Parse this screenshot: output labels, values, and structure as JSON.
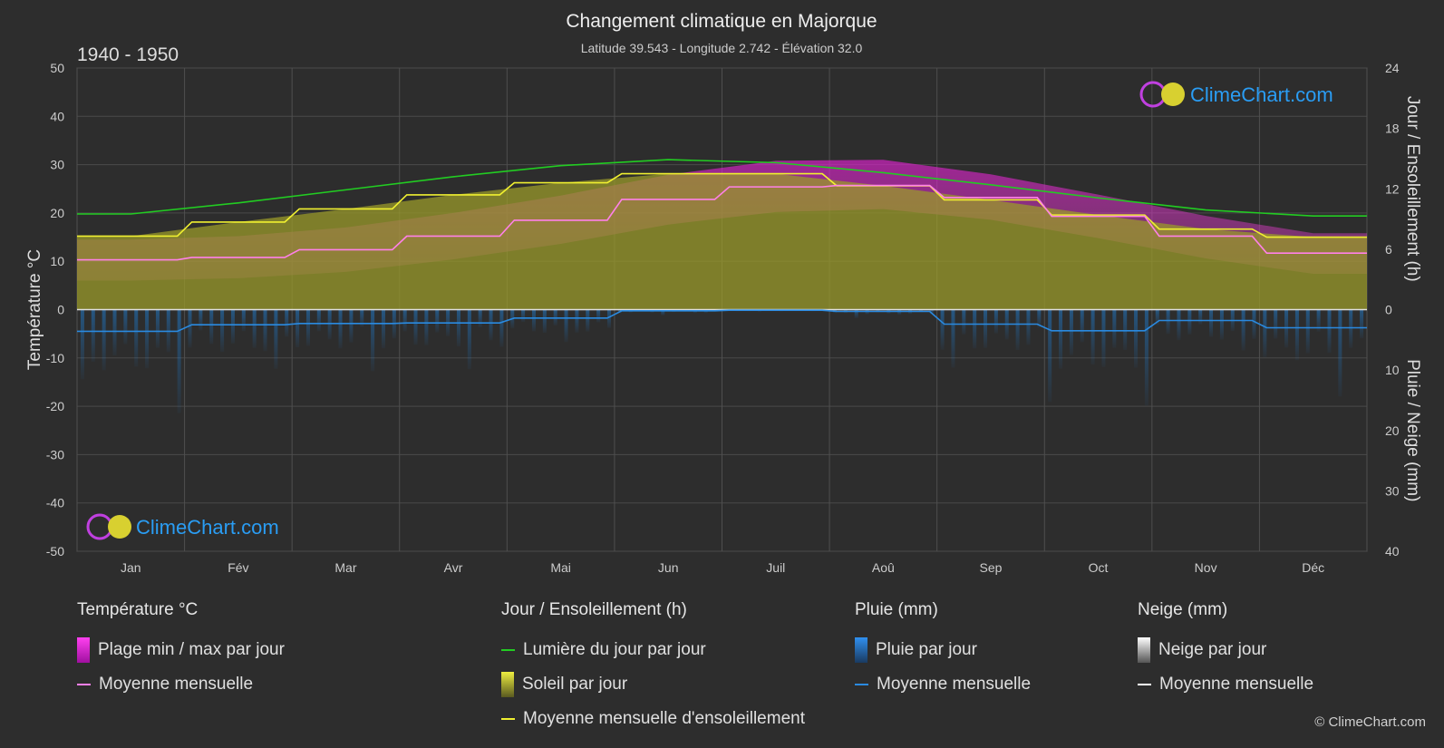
{
  "title": "Changement climatique en Majorque",
  "subtitle": "Latitude 39.543 - Longitude 2.742 - Élévation 32.0",
  "period": "1940 - 1950",
  "watermark": "ClimeChart.com",
  "copyright": "© ClimeChart.com",
  "colors": {
    "background": "#2d2d2d",
    "temp_range": "#e020d0",
    "temp_mean": "#ff80e8",
    "daylight": "#22cc22",
    "sunshine_fill": "#9a9a2a",
    "sunshine_mean": "#f0f030",
    "rain": "#1e78c8",
    "rain_mean": "#2a8ae0",
    "snow_mean": "#ffffff",
    "brand": "#2a9df4"
  },
  "legend": [
    {
      "title": "Température °C",
      "items": [
        {
          "label": "Plage min / max par jour",
          "swatch": "box",
          "color": "#e020d0"
        },
        {
          "label": "Moyenne mensuelle",
          "swatch": "line",
          "color": "#ff80e8"
        }
      ]
    },
    {
      "title": "Jour / Ensoleillement (h)",
      "items": [
        {
          "label": "Lumière du jour par jour",
          "swatch": "line",
          "color": "#22cc22"
        },
        {
          "label": "Soleil par jour",
          "swatch": "box",
          "color": "#c8c830"
        },
        {
          "label": "Moyenne mensuelle d'ensoleillement",
          "swatch": "line",
          "color": "#f0f030"
        }
      ]
    },
    {
      "title": "Pluie (mm)",
      "items": [
        {
          "label": "Pluie par jour",
          "swatch": "box",
          "color": "#1e78c8"
        },
        {
          "label": "Moyenne mensuelle",
          "swatch": "line",
          "color": "#2a8ae0"
        }
      ]
    },
    {
      "title": "Neige (mm)",
      "items": [
        {
          "label": "Neige par jour",
          "swatch": "box",
          "color": "#e0e0e0"
        },
        {
          "label": "Moyenne mensuelle",
          "swatch": "line",
          "color": "#ffffff"
        }
      ]
    }
  ],
  "chart_data": {
    "type": "line",
    "title": "Changement climatique en Majorque",
    "subtitle": "Latitude 39.543 - Longitude 2.742 - Élévation 32.0",
    "categories": [
      "Jan",
      "Fév",
      "Mar",
      "Avr",
      "Mai",
      "Jun",
      "Juil",
      "Aoû",
      "Sep",
      "Oct",
      "Nov",
      "Déc"
    ],
    "y_left": {
      "label": "Température °C",
      "min": -50,
      "max": 50,
      "ticks": [
        50,
        40,
        30,
        20,
        10,
        0,
        -10,
        -20,
        -30,
        -40,
        -50
      ]
    },
    "y_right_top": {
      "label": "Jour / Ensoleillement (h)",
      "min": 0,
      "max": 24,
      "ticks": [
        24,
        18,
        12,
        6,
        0
      ]
    },
    "y_right_bottom": {
      "label": "Pluie / Neige (mm)",
      "min": 0,
      "max": 40,
      "ticks": [
        10,
        20,
        30,
        40
      ]
    },
    "grid": true,
    "series": [
      {
        "name": "Lumière du jour par jour",
        "axis": "hours",
        "values": [
          9.5,
          10.6,
          11.9,
          13.2,
          14.3,
          14.9,
          14.6,
          13.6,
          12.4,
          11.1,
          9.9,
          9.3
        ]
      },
      {
        "name": "Moyenne mensuelle d'ensoleillement",
        "axis": "hours",
        "values": [
          7.3,
          8.7,
          10.0,
          11.4,
          12.6,
          13.5,
          13.5,
          12.3,
          10.9,
          9.4,
          8.0,
          7.2
        ]
      },
      {
        "name": "Moyenne mensuelle",
        "key": "temp_mean",
        "axis": "temp",
        "values": [
          10.3,
          10.8,
          12.4,
          15.2,
          18.5,
          22.8,
          25.4,
          25.7,
          23.2,
          19.3,
          15.2,
          11.7
        ]
      },
      {
        "name": "Moyenne mensuelle",
        "key": "rain_mean",
        "axis": "rain",
        "values": [
          3.6,
          2.5,
          2.3,
          2.2,
          1.4,
          0.2,
          0.1,
          0.3,
          2.4,
          3.5,
          1.8,
          3.0
        ]
      },
      {
        "name": "Moyenne mensuelle",
        "key": "snow_mean",
        "axis": "rain",
        "values": [
          0,
          0,
          0,
          0,
          0,
          0,
          0,
          0,
          0,
          0,
          0,
          0
        ]
      }
    ],
    "temp_range_monthly": {
      "min": [
        6.0,
        6.5,
        7.8,
        10.4,
        13.6,
        17.6,
        20.2,
        20.8,
        18.6,
        14.8,
        10.6,
        7.4
      ],
      "max": [
        14.5,
        15.2,
        17.0,
        20.0,
        23.6,
        27.9,
        30.8,
        31.0,
        28.0,
        23.8,
        19.4,
        15.8
      ]
    }
  }
}
